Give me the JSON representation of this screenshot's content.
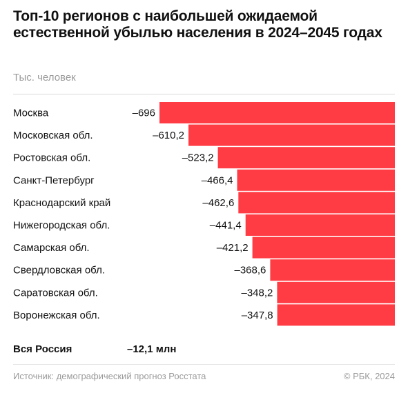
{
  "chart_data": {
    "type": "bar",
    "orientation": "horizontal",
    "title": "Топ-10 регионов с наибольшей ожидаемой естественной убылью населения в 2024–2045 годах",
    "unit_label": "Тыс. человек",
    "categories": [
      "Москва",
      "Московская обл.",
      "Ростовская обл.",
      "Санкт-Петербург",
      "Краснодарский край",
      "Нижегородская обл.",
      "Самарская обл.",
      "Свердловская обл.",
      "Саратовская обл.",
      "Воронежская обл."
    ],
    "values": [
      -696,
      -610.2,
      -523.2,
      -466.4,
      -462.6,
      -441.4,
      -421.2,
      -368.6,
      -348.2,
      -347.8
    ],
    "value_labels": [
      "–696",
      "–610,2",
      "–523,2",
      "–466,4",
      "–462,6",
      "–441,4",
      "–421,2",
      "–368,6",
      "–348,2",
      "–347,8"
    ],
    "bar_color": "#ff3b44",
    "legend": "none",
    "grid": false
  },
  "total": {
    "label": "Вся Россия",
    "value": "–12,1 млн"
  },
  "footer": {
    "source": "Источник: демографический прогноз Росстата",
    "copyright": "© РБК, 2024"
  }
}
